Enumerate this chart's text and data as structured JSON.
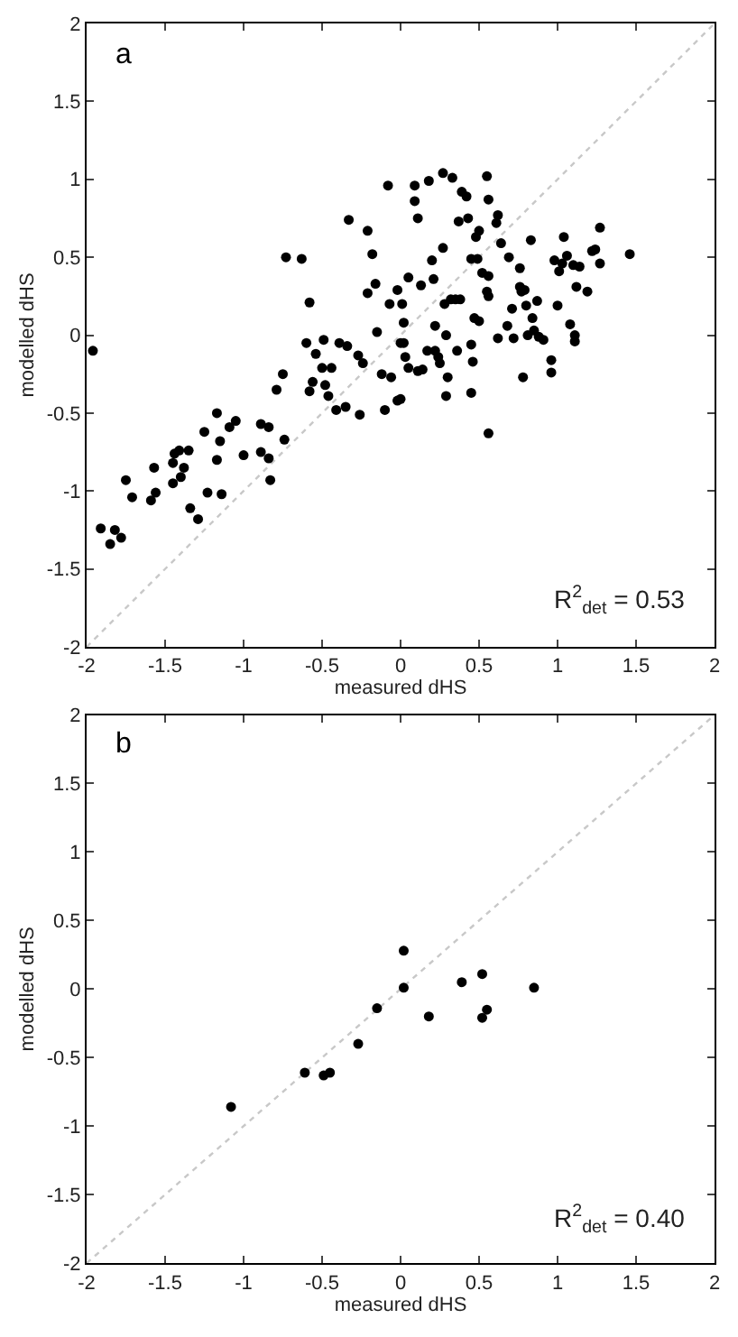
{
  "chart_data": [
    {
      "type": "scatter",
      "xlabel": "measured dHS",
      "ylabel": "modelled dHS",
      "xlim": [
        -2,
        2
      ],
      "ylim": [
        -2,
        2
      ],
      "xticks": [
        -2,
        -1.5,
        -1,
        -0.5,
        0,
        0.5,
        1,
        1.5,
        2
      ],
      "yticks": [
        -2,
        -1.5,
        -1,
        -0.5,
        0,
        0.5,
        1,
        1.5,
        2
      ],
      "grid": false,
      "annotations": [
        "a",
        "R$^{2}$$_{det}$ = 0.53"
      ],
      "series": [
        {
          "type": "line",
          "color": "#c8c8c8",
          "line_style": "dotted",
          "x": [
            -2,
            2
          ],
          "values": [
            -2,
            2
          ]
        },
        {
          "color": "#000000",
          "marker": "circle",
          "x": [
            -1.96,
            -1.91,
            -1.85,
            -1.82,
            -1.78,
            -1.75,
            -1.71,
            -1.59,
            -1.57,
            -1.56,
            -1.45,
            -1.44,
            -1.45,
            -1.41,
            -1.4,
            -1.38,
            -1.35,
            -1.34,
            -1.29,
            -1.25,
            -1.23,
            -1.17,
            -1.17,
            -1.15,
            -1.14,
            -1.09,
            -1.05,
            -1.0,
            -0.89,
            -0.89,
            -0.84,
            -0.84,
            -0.83,
            -0.79,
            -0.75,
            -0.74,
            -0.73,
            -0.63,
            -0.58,
            -0.6,
            -0.58,
            -0.56,
            -0.54,
            -0.49,
            -0.5,
            -0.48,
            -0.46,
            -0.44,
            -0.41,
            -0.39,
            -0.34,
            -0.33,
            -0.35,
            -0.27,
            -0.26,
            -0.24,
            -0.21,
            -0.21,
            -0.18,
            -0.16,
            -0.15,
            -0.12,
            -0.1,
            -0.08,
            -0.07,
            -0.06,
            -0.02,
            -0.02,
            0.01,
            0.0,
            0.02,
            0.02,
            0.03,
            0.05,
            0.05,
            0.0,
            0.09,
            0.09,
            0.11,
            0.13,
            0.11,
            0.14,
            0.17,
            0.18,
            0.2,
            0.21,
            0.22,
            0.22,
            0.24,
            0.25,
            0.27,
            0.27,
            0.28,
            0.29,
            0.3,
            0.29,
            0.32,
            0.33,
            0.35,
            0.37,
            0.38,
            0.36,
            0.39,
            0.42,
            0.43,
            0.45,
            0.45,
            0.46,
            0.45,
            0.47,
            0.48,
            0.49,
            0.5,
            0.5,
            0.52,
            0.55,
            0.56,
            0.56,
            0.55,
            0.56,
            0.56,
            0.61,
            0.62,
            0.64,
            0.62,
            0.69,
            0.68,
            0.71,
            0.72,
            0.76,
            0.76,
            0.77,
            0.79,
            0.78,
            0.8,
            0.81,
            0.83,
            0.84,
            0.85,
            0.87,
            0.88,
            0.91,
            0.96,
            0.96,
            0.98,
            1.0,
            1.01,
            1.04,
            1.03,
            1.06,
            1.08,
            1.1,
            1.11,
            1.11,
            1.12,
            1.14,
            1.19,
            1.22,
            1.24,
            1.27,
            1.27,
            1.46
          ],
          "values": [
            -0.1,
            -1.24,
            -1.34,
            -1.25,
            -1.3,
            -0.93,
            -1.04,
            -1.06,
            -0.85,
            -1.01,
            -0.82,
            -0.76,
            -0.95,
            -0.74,
            -0.91,
            -0.85,
            -0.74,
            -1.11,
            -1.18,
            -0.62,
            -1.01,
            -0.5,
            -0.8,
            -0.68,
            -1.02,
            -0.59,
            -0.55,
            -0.77,
            -0.57,
            -0.75,
            -0.59,
            -0.79,
            -0.93,
            -0.35,
            -0.25,
            -0.67,
            0.5,
            0.49,
            0.21,
            -0.05,
            -0.36,
            -0.3,
            -0.12,
            -0.03,
            -0.21,
            -0.32,
            -0.39,
            -0.21,
            -0.48,
            -0.05,
            -0.07,
            0.74,
            -0.46,
            -0.13,
            -0.51,
            -0.18,
            0.67,
            0.27,
            0.52,
            0.33,
            0.02,
            -0.25,
            -0.48,
            0.96,
            0.2,
            -0.27,
            0.29,
            -0.42,
            0.2,
            -0.05,
            0.08,
            -0.05,
            -0.14,
            0.37,
            -0.21,
            -0.41,
            0.96,
            0.86,
            0.75,
            0.32,
            -0.23,
            -0.22,
            -0.1,
            0.99,
            0.48,
            0.36,
            0.06,
            -0.1,
            -0.14,
            -0.18,
            0.56,
            1.04,
            0.2,
            0.0,
            -0.27,
            -0.39,
            0.23,
            1.01,
            0.23,
            0.73,
            0.23,
            -0.1,
            0.92,
            0.89,
            0.75,
            0.49,
            -0.06,
            -0.17,
            -0.37,
            0.11,
            0.63,
            0.49,
            0.09,
            0.67,
            0.4,
            1.02,
            0.87,
            0.38,
            0.28,
            0.25,
            -0.63,
            0.72,
            0.77,
            0.59,
            -0.02,
            0.5,
            0.06,
            0.17,
            -0.02,
            0.43,
            0.31,
            0.28,
            0.29,
            -0.27,
            0.19,
            0.0,
            0.61,
            0.11,
            0.03,
            0.22,
            -0.01,
            -0.03,
            -0.16,
            -0.24,
            0.48,
            0.19,
            0.41,
            0.63,
            0.46,
            0.51,
            0.07,
            0.45,
            0.0,
            -0.04,
            0.31,
            0.44,
            0.28,
            0.54,
            0.55,
            0.46,
            0.69,
            0.52
          ]
        }
      ]
    },
    {
      "type": "scatter",
      "xlabel": "measured dHS",
      "ylabel": "modelled dHS",
      "xlim": [
        -2,
        2
      ],
      "ylim": [
        -2,
        2
      ],
      "xticks": [
        -2,
        -1.5,
        -1,
        -0.5,
        0,
        0.5,
        1,
        1.5,
        2
      ],
      "yticks": [
        -2,
        -1.5,
        -1,
        -0.5,
        0,
        0.5,
        1,
        1.5,
        2
      ],
      "grid": false,
      "annotations": [
        "b",
        "R$^{2}$$_{det}$ = 0.40"
      ],
      "series": [
        {
          "type": "line",
          "color": "#c8c8c8",
          "line_style": "dotted",
          "x": [
            -2,
            2
          ],
          "values": [
            -2,
            2
          ]
        },
        {
          "color": "#000000",
          "marker": "circle",
          "x": [
            -1.08,
            -0.61,
            -0.49,
            -0.45,
            -0.27,
            -0.15,
            0.02,
            0.02,
            0.18,
            0.39,
            0.52,
            0.52,
            0.55,
            0.85
          ],
          "values": [
            -0.86,
            -0.61,
            -0.63,
            -0.61,
            -0.4,
            -0.14,
            0.28,
            0.01,
            -0.2,
            0.05,
            0.11,
            -0.21,
            -0.15,
            0.01
          ]
        }
      ]
    }
  ]
}
